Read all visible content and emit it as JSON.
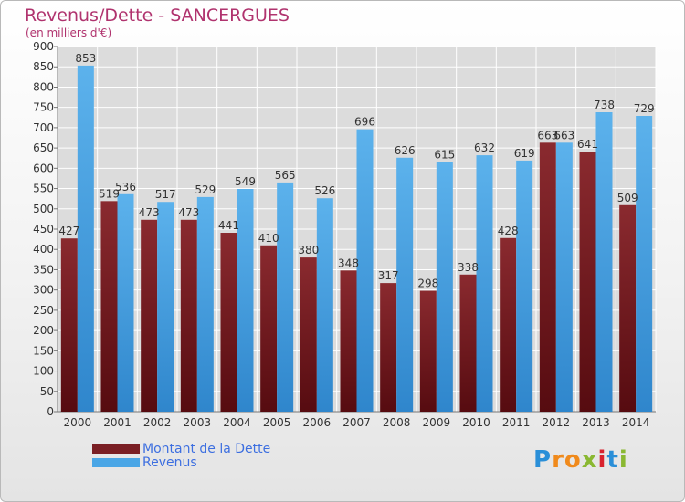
{
  "header": {
    "title": "Revenus/Dette - SANCERGUES",
    "subtitle": "(en milliers d'€)"
  },
  "legend": {
    "items": [
      {
        "label": "Montant de la Dette",
        "color": "#7a1f24"
      },
      {
        "label": "Revenus",
        "color": "#4aa6e6"
      }
    ]
  },
  "brand": {
    "letters": [
      "P",
      "r",
      "o",
      "x",
      "i",
      "t",
      "i"
    ],
    "colors": [
      "#2a8fd8",
      "#f08a1c",
      "#f08a1c",
      "#8ab832",
      "#d9232e",
      "#2a8fd8",
      "#8ab832"
    ]
  },
  "chart_data": {
    "type": "bar",
    "title": "Revenus/Dette - SANCERGUES",
    "subtitle": "(en milliers d'€)",
    "categories": [
      "2000",
      "2001",
      "2002",
      "2003",
      "2004",
      "2005",
      "2006",
      "2007",
      "2008",
      "2009",
      "2010",
      "2011",
      "2012",
      "2013",
      "2014"
    ],
    "series": [
      {
        "name": "Montant de la Dette",
        "color": "#7a1f24",
        "values": [
          427,
          519,
          473,
          473,
          441,
          410,
          380,
          348,
          317,
          298,
          338,
          428,
          663,
          641,
          509
        ]
      },
      {
        "name": "Revenus",
        "color": "#4aa6e6",
        "values": [
          853,
          536,
          517,
          529,
          549,
          565,
          526,
          696,
          626,
          615,
          632,
          619,
          663,
          738,
          729
        ]
      }
    ],
    "ylim": [
      0,
      900
    ],
    "yticks": [
      0,
      50,
      100,
      150,
      200,
      250,
      300,
      350,
      400,
      450,
      500,
      550,
      600,
      650,
      700,
      750,
      800,
      850,
      900
    ],
    "grid": true,
    "legend_position": "bottom-left"
  }
}
